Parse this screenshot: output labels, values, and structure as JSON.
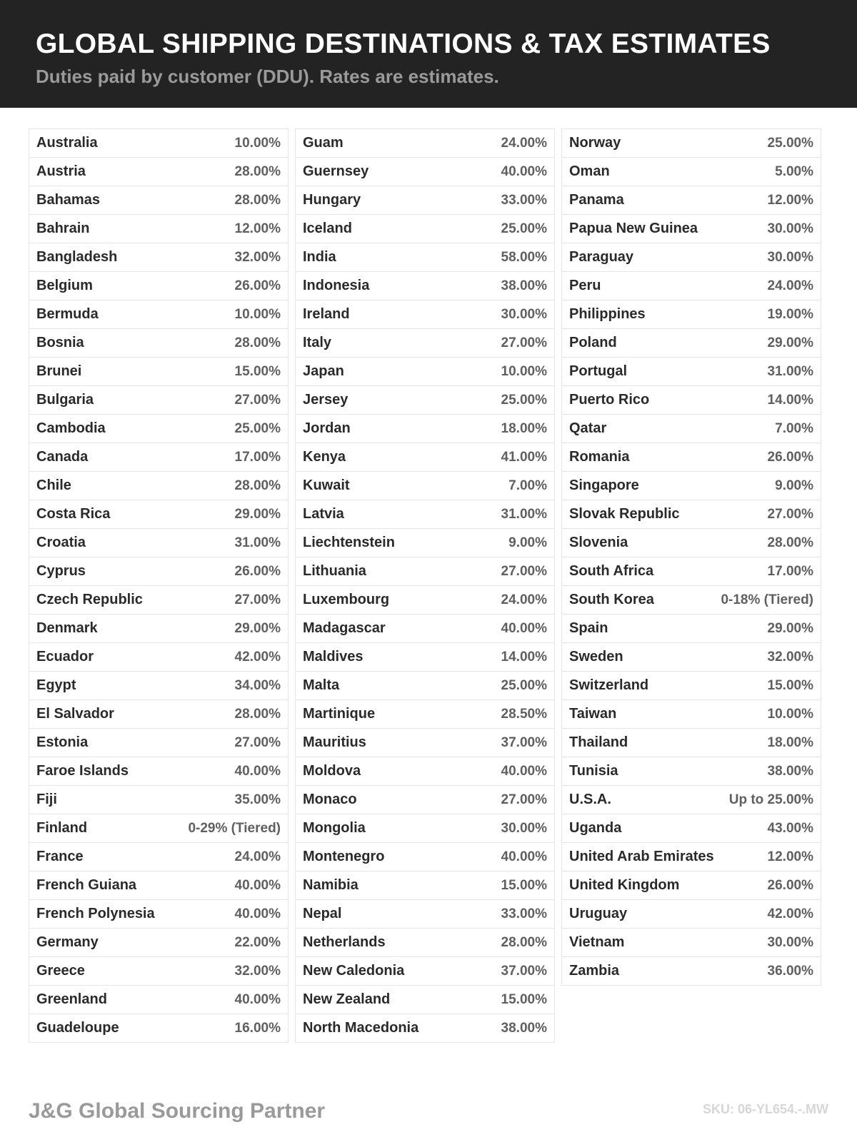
{
  "header": {
    "title": "GLOBAL SHIPPING DESTINATIONS & TAX ESTIMATES",
    "subtitle": "Duties paid by customer (DDU). Rates are estimates."
  },
  "columns": [
    [
      [
        "Australia",
        "10.00%"
      ],
      [
        "Austria",
        "28.00%"
      ],
      [
        "Bahamas",
        "28.00%"
      ],
      [
        "Bahrain",
        "12.00%"
      ],
      [
        "Bangladesh",
        "32.00%"
      ],
      [
        "Belgium",
        "26.00%"
      ],
      [
        "Bermuda",
        "10.00%"
      ],
      [
        "Bosnia",
        "28.00%"
      ],
      [
        "Brunei",
        "15.00%"
      ],
      [
        "Bulgaria",
        "27.00%"
      ],
      [
        "Cambodia",
        "25.00%"
      ],
      [
        "Canada",
        "17.00%"
      ],
      [
        "Chile",
        "28.00%"
      ],
      [
        "Costa Rica",
        "29.00%"
      ],
      [
        "Croatia",
        "31.00%"
      ],
      [
        "Cyprus",
        "26.00%"
      ],
      [
        "Czech Republic",
        "27.00%"
      ],
      [
        "Denmark",
        "29.00%"
      ],
      [
        "Ecuador",
        "42.00%"
      ],
      [
        "Egypt",
        "34.00%"
      ],
      [
        "El Salvador",
        "28.00%"
      ],
      [
        "Estonia",
        "27.00%"
      ],
      [
        "Faroe Islands",
        "40.00%"
      ],
      [
        "Fiji",
        "35.00%"
      ],
      [
        "Finland",
        "0-29% (Tiered)"
      ],
      [
        "France",
        "24.00%"
      ],
      [
        "French Guiana",
        "40.00%"
      ],
      [
        "French Polynesia",
        "40.00%"
      ],
      [
        "Germany",
        "22.00%"
      ],
      [
        "Greece",
        "32.00%"
      ],
      [
        "Greenland",
        "40.00%"
      ],
      [
        "Guadeloupe",
        "16.00%"
      ]
    ],
    [
      [
        "Guam",
        "24.00%"
      ],
      [
        "Guernsey",
        "40.00%"
      ],
      [
        "Hungary",
        "33.00%"
      ],
      [
        "Iceland",
        "25.00%"
      ],
      [
        "India",
        "58.00%"
      ],
      [
        "Indonesia",
        "38.00%"
      ],
      [
        "Ireland",
        "30.00%"
      ],
      [
        "Italy",
        "27.00%"
      ],
      [
        "Japan",
        "10.00%"
      ],
      [
        "Jersey",
        "25.00%"
      ],
      [
        "Jordan",
        "18.00%"
      ],
      [
        "Kenya",
        "41.00%"
      ],
      [
        "Kuwait",
        "7.00%"
      ],
      [
        "Latvia",
        "31.00%"
      ],
      [
        "Liechtenstein",
        "9.00%"
      ],
      [
        "Lithuania",
        "27.00%"
      ],
      [
        "Luxembourg",
        "24.00%"
      ],
      [
        "Madagascar",
        "40.00%"
      ],
      [
        "Maldives",
        "14.00%"
      ],
      [
        "Malta",
        "25.00%"
      ],
      [
        "Martinique",
        "28.50%"
      ],
      [
        "Mauritius",
        "37.00%"
      ],
      [
        "Moldova",
        "40.00%"
      ],
      [
        "Monaco",
        "27.00%"
      ],
      [
        "Mongolia",
        "30.00%"
      ],
      [
        "Montenegro",
        "40.00%"
      ],
      [
        "Namibia",
        "15.00%"
      ],
      [
        "Nepal",
        "33.00%"
      ],
      [
        "Netherlands",
        "28.00%"
      ],
      [
        "New Caledonia",
        "37.00%"
      ],
      [
        "New Zealand",
        "15.00%"
      ],
      [
        "North Macedonia",
        "38.00%"
      ]
    ],
    [
      [
        "Norway",
        "25.00%"
      ],
      [
        "Oman",
        "5.00%"
      ],
      [
        "Panama",
        "12.00%"
      ],
      [
        "Papua New Guinea",
        "30.00%"
      ],
      [
        "Paraguay",
        "30.00%"
      ],
      [
        "Peru",
        "24.00%"
      ],
      [
        "Philippines",
        "19.00%"
      ],
      [
        "Poland",
        "29.00%"
      ],
      [
        "Portugal",
        "31.00%"
      ],
      [
        "Puerto Rico",
        "14.00%"
      ],
      [
        "Qatar",
        "7.00%"
      ],
      [
        "Romania",
        "26.00%"
      ],
      [
        "Singapore",
        "9.00%"
      ],
      [
        "Slovak Republic",
        "27.00%"
      ],
      [
        "Slovenia",
        "28.00%"
      ],
      [
        "South Africa",
        "17.00%"
      ],
      [
        "South Korea",
        "0-18% (Tiered)"
      ],
      [
        "Spain",
        "29.00%"
      ],
      [
        "Sweden",
        "32.00%"
      ],
      [
        "Switzerland",
        "15.00%"
      ],
      [
        "Taiwan",
        "10.00%"
      ],
      [
        "Thailand",
        "18.00%"
      ],
      [
        "Tunisia",
        "38.00%"
      ],
      [
        "U.S.A.",
        "Up to 25.00%"
      ],
      [
        "Uganda",
        "43.00%"
      ],
      [
        "United Arab Emirates",
        "12.00%"
      ],
      [
        "United Kingdom",
        "26.00%"
      ],
      [
        "Uruguay",
        "42.00%"
      ],
      [
        "Vietnam",
        "30.00%"
      ],
      [
        "Zambia",
        "36.00%"
      ]
    ]
  ],
  "footer": {
    "brand": "J&G Global Sourcing Partner",
    "sku": "SKU: 06-YL654.-.MW"
  }
}
